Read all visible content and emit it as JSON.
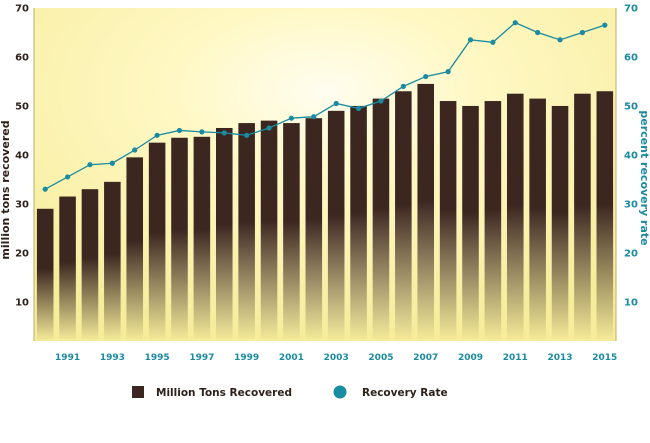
{
  "chart_data": {
    "type": "bar+line",
    "x": [
      1990,
      1991,
      1992,
      1993,
      1994,
      1995,
      1996,
      1997,
      1998,
      1999,
      2000,
      2001,
      2002,
      2003,
      2004,
      2005,
      2006,
      2007,
      2008,
      2009,
      2010,
      2011,
      2012,
      2013,
      2014,
      2015
    ],
    "x_tick_labels": [
      "1991",
      "1993",
      "1995",
      "1997",
      "1999",
      "2001",
      "2003",
      "2005",
      "2007",
      "2009",
      "2011",
      "2013",
      "2015"
    ],
    "series": [
      {
        "name": "Million Tons Recovered",
        "type": "bar",
        "axis": "left",
        "color": "#3b2620",
        "values": [
          29.0,
          31.5,
          33.0,
          34.5,
          39.5,
          42.5,
          43.5,
          43.7,
          45.5,
          46.5,
          47.0,
          46.5,
          47.5,
          49.0,
          50.0,
          51.5,
          53.0,
          54.5,
          51.0,
          50.0,
          51.0,
          52.5,
          51.5,
          50.0,
          52.5,
          53.0
        ]
      },
      {
        "name": "Recovery Rate",
        "type": "line",
        "axis": "right",
        "color": "#1a8ba0",
        "values": [
          33.0,
          35.5,
          38.0,
          38.3,
          41.0,
          44.0,
          45.0,
          44.7,
          44.5,
          44.0,
          45.5,
          47.5,
          47.8,
          50.5,
          49.5,
          51.0,
          54.0,
          56.0,
          57.0,
          63.5,
          63.0,
          67.0,
          65.0,
          63.5,
          65.0,
          66.5
        ]
      }
    ],
    "ylabel": "million tons recovered",
    "ylabel_right": "percent recovery rate",
    "y_ticks": [
      "10",
      "20",
      "30",
      "40",
      "50",
      "60",
      "70"
    ],
    "y_ticks_right": [
      "10",
      "20",
      "30",
      "40",
      "50",
      "60",
      "70"
    ],
    "ylim": [
      2,
      70
    ],
    "ylim_right": [
      2,
      70
    ],
    "legend_position": "bottom",
    "grid": false,
    "background": "radial yellow glow #fff6b0 fading to #f7eea0"
  }
}
